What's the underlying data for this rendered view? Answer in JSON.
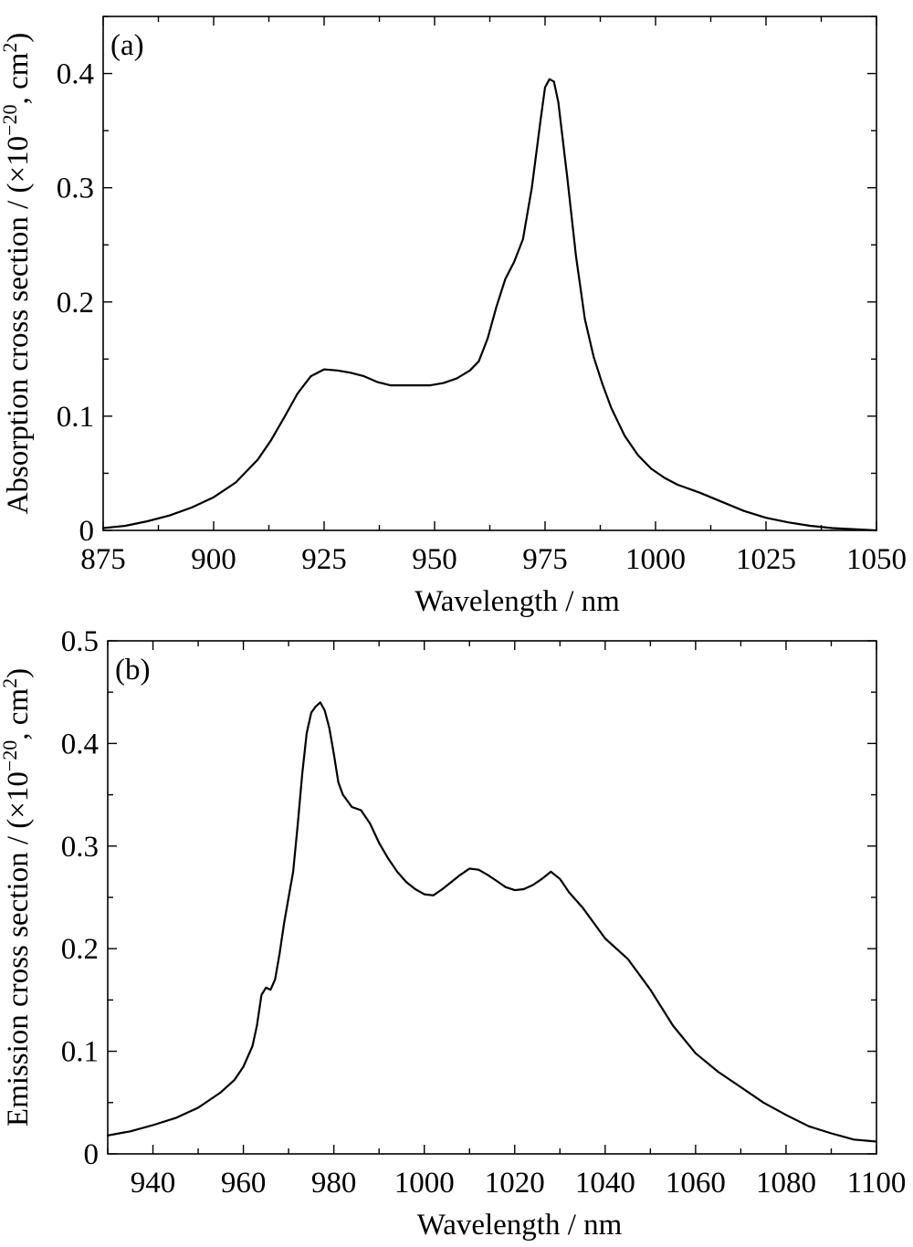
{
  "chart_data": [
    {
      "type": "line",
      "panel_label": "(a)",
      "xlabel": "Wavelength / nm",
      "ylabel": "Absorption cross section / (×10",
      "ylabel_sup": "−20",
      "ylabel_mid": ", cm",
      "ylabel_sup2": "2",
      "ylabel_end": ")",
      "xlim": [
        875,
        1050
      ],
      "ylim": [
        0,
        0.45
      ],
      "xticks": [
        875,
        900,
        925,
        950,
        975,
        1000,
        1025,
        1050
      ],
      "xtick_labels": [
        "875",
        "900",
        "925",
        "950",
        "975",
        "1000",
        "1025",
        "1050"
      ],
      "yticks": [
        0,
        0.1,
        0.2,
        0.3,
        0.4
      ],
      "ytick_labels": [
        "0",
        "0.1",
        "0.2",
        "0.3",
        "0.4"
      ],
      "grid": false,
      "series": [
        {
          "x": [
            875,
            880,
            885,
            890,
            895,
            900,
            905,
            910,
            913,
            916,
            919,
            922,
            925,
            928,
            931,
            934,
            937,
            940,
            943,
            946,
            949,
            952,
            955,
            958,
            960,
            962,
            964,
            966,
            968,
            970,
            972,
            974,
            975,
            976,
            977,
            978,
            980,
            982,
            984,
            986,
            988,
            990,
            993,
            996,
            999,
            1002,
            1005,
            1010,
            1015,
            1020,
            1025,
            1030,
            1035,
            1040,
            1045,
            1050
          ],
          "y": [
            0.002,
            0.004,
            0.008,
            0.013,
            0.02,
            0.029,
            0.042,
            0.062,
            0.079,
            0.099,
            0.12,
            0.135,
            0.141,
            0.14,
            0.138,
            0.135,
            0.13,
            0.127,
            0.127,
            0.127,
            0.127,
            0.129,
            0.133,
            0.14,
            0.148,
            0.168,
            0.196,
            0.22,
            0.235,
            0.255,
            0.3,
            0.36,
            0.388,
            0.395,
            0.393,
            0.375,
            0.31,
            0.24,
            0.185,
            0.152,
            0.128,
            0.107,
            0.083,
            0.066,
            0.054,
            0.046,
            0.04,
            0.033,
            0.025,
            0.017,
            0.011,
            0.007,
            0.004,
            0.002,
            0.001,
            0.0
          ]
        }
      ]
    },
    {
      "type": "line",
      "panel_label": "(b)",
      "xlabel": "Wavelength / nm",
      "ylabel": "Emission cross section / (×10",
      "ylabel_sup": "−20",
      "ylabel_mid": ", cm",
      "ylabel_sup2": "2",
      "ylabel_end": ")",
      "xlim": [
        930,
        1100
      ],
      "ylim": [
        0,
        0.5
      ],
      "xticks": [
        940,
        960,
        980,
        1000,
        1020,
        1040,
        1060,
        1080,
        1100
      ],
      "xtick_labels": [
        "940",
        "960",
        "980",
        "1000",
        "1020",
        "1040",
        "1060",
        "1080",
        "1100"
      ],
      "yticks": [
        0,
        0.1,
        0.2,
        0.3,
        0.4,
        0.5
      ],
      "ytick_labels": [
        "0",
        "0.1",
        "0.2",
        "0.3",
        "0.4",
        "0.5"
      ],
      "grid": false,
      "series": [
        {
          "x": [
            930,
            935,
            940,
            945,
            950,
            955,
            958,
            960,
            962,
            963,
            964,
            965,
            966,
            967,
            968,
            969,
            970,
            971,
            972,
            973,
            974,
            975,
            976,
            977,
            978,
            979,
            980,
            981,
            982,
            984,
            986,
            988,
            990,
            992,
            994,
            996,
            998,
            1000,
            1002,
            1004,
            1006,
            1008,
            1010,
            1012,
            1014,
            1016,
            1018,
            1020,
            1022,
            1024,
            1026,
            1028,
            1030,
            1032,
            1035,
            1040,
            1045,
            1050,
            1055,
            1060,
            1065,
            1070,
            1075,
            1080,
            1085,
            1090,
            1095,
            1100
          ],
          "y": [
            0.018,
            0.022,
            0.028,
            0.035,
            0.045,
            0.06,
            0.072,
            0.085,
            0.105,
            0.125,
            0.155,
            0.162,
            0.16,
            0.17,
            0.195,
            0.225,
            0.25,
            0.275,
            0.32,
            0.37,
            0.41,
            0.43,
            0.436,
            0.44,
            0.432,
            0.415,
            0.39,
            0.362,
            0.35,
            0.338,
            0.335,
            0.322,
            0.303,
            0.288,
            0.275,
            0.265,
            0.258,
            0.253,
            0.252,
            0.258,
            0.265,
            0.272,
            0.278,
            0.277,
            0.272,
            0.266,
            0.26,
            0.257,
            0.258,
            0.262,
            0.268,
            0.275,
            0.268,
            0.255,
            0.24,
            0.21,
            0.19,
            0.16,
            0.125,
            0.098,
            0.08,
            0.065,
            0.05,
            0.038,
            0.027,
            0.02,
            0.014,
            0.012
          ]
        }
      ]
    }
  ]
}
